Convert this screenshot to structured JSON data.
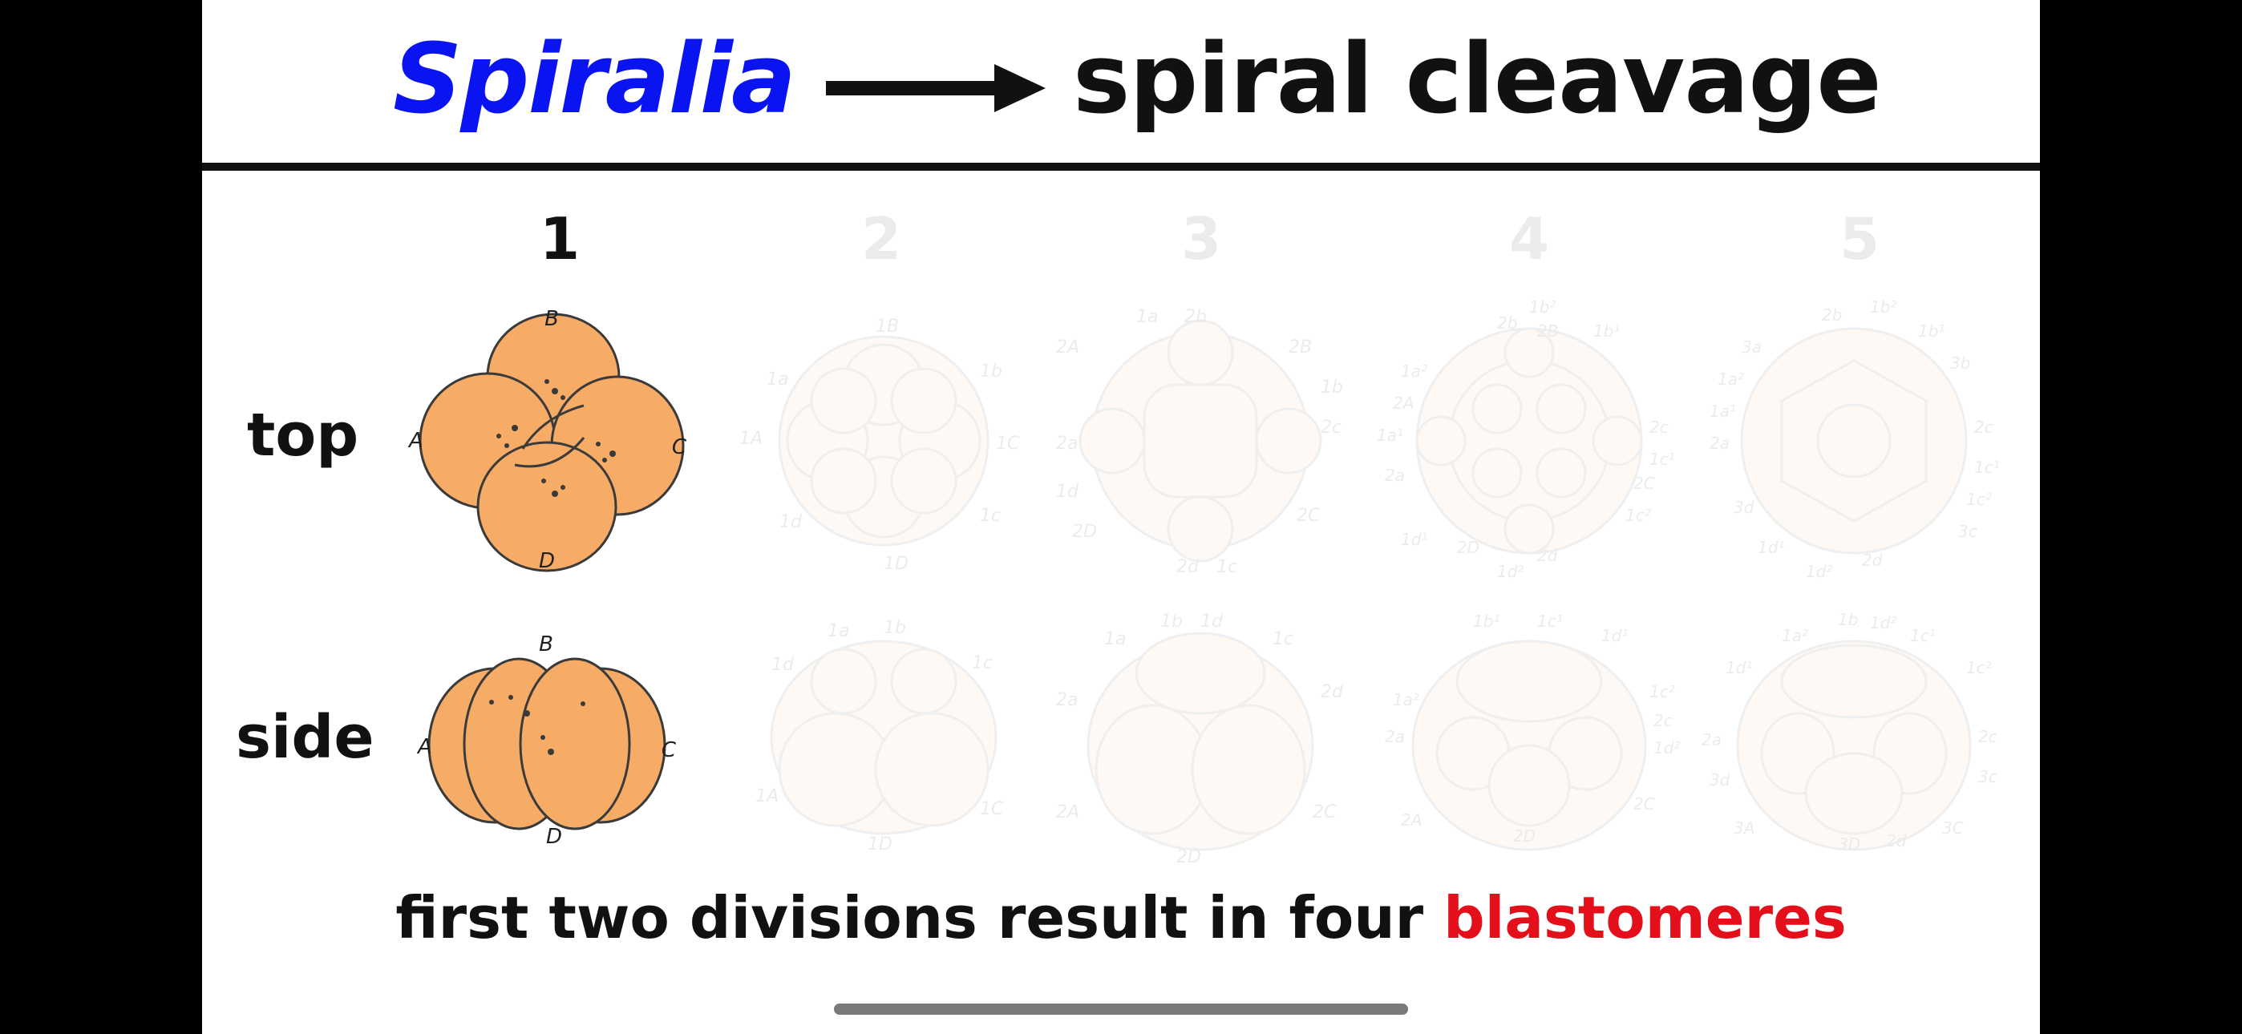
{
  "title": {
    "term": "Spiralia",
    "result": "spiral cleavage",
    "arrow": "right-arrow",
    "term_color": "#0a14f0"
  },
  "columns": [
    "1",
    "2",
    "3",
    "4",
    "5"
  ],
  "rows": [
    "top",
    "side"
  ],
  "stage1": {
    "top_labels": {
      "b": "B",
      "a": "A",
      "c": "C",
      "d": "D"
    },
    "side_labels": {
      "b": "B",
      "a": "A",
      "c": "C",
      "d": "D"
    }
  },
  "stage2": {
    "top_labels": [
      "1B",
      "1a",
      "1b",
      "1A",
      "1C",
      "1d",
      "1c",
      "1D"
    ],
    "side_labels": [
      "1a",
      "1b",
      "1d",
      "1c",
      "1A",
      "1C",
      "1D"
    ]
  },
  "stage3": {
    "top_labels": [
      "1a",
      "2b",
      "2A",
      "2B",
      "1b",
      "2a",
      "2c",
      "1d",
      "2D",
      "2C",
      "2d",
      "1c"
    ],
    "side_labels": [
      "1b",
      "1d",
      "1a",
      "1c",
      "2a",
      "2d",
      "2A",
      "2C",
      "2D"
    ]
  },
  "stage4": {
    "top_labels": [
      "1b²",
      "2b",
      "2B",
      "1b¹",
      "1a²",
      "2A",
      "1a¹",
      "2c",
      "1c¹",
      "2a",
      "2C",
      "1c²",
      "1d¹",
      "2D",
      "2d",
      "1d²"
    ],
    "side_labels": [
      "1b¹",
      "1c¹",
      "1d¹",
      "1a²",
      "1c²",
      "2a",
      "2c",
      "1d²",
      "2A",
      "2D",
      "2C"
    ]
  },
  "stage5": {
    "top_labels": [
      "2b",
      "1b²",
      "1b¹",
      "3a",
      "3b",
      "1a²",
      "1a¹",
      "2a",
      "2c",
      "1c¹",
      "1c²",
      "3d",
      "3c",
      "1d¹",
      "2d",
      "1d²"
    ],
    "side_labels": [
      "1a²",
      "1b",
      "1d²",
      "1c¹",
      "1d¹",
      "1c²",
      "2a",
      "2c",
      "3d",
      "3c",
      "3A",
      "3D",
      "2d",
      "3C"
    ]
  },
  "footer": {
    "text": "first two divisions result in four ",
    "highlight": "blastomeres",
    "highlight_color": "#e3101b"
  },
  "colors": {
    "cell_fill": "#f6ac66",
    "cell_stroke": "#3a3a3a",
    "ghost_fill": "#f7c48e"
  }
}
